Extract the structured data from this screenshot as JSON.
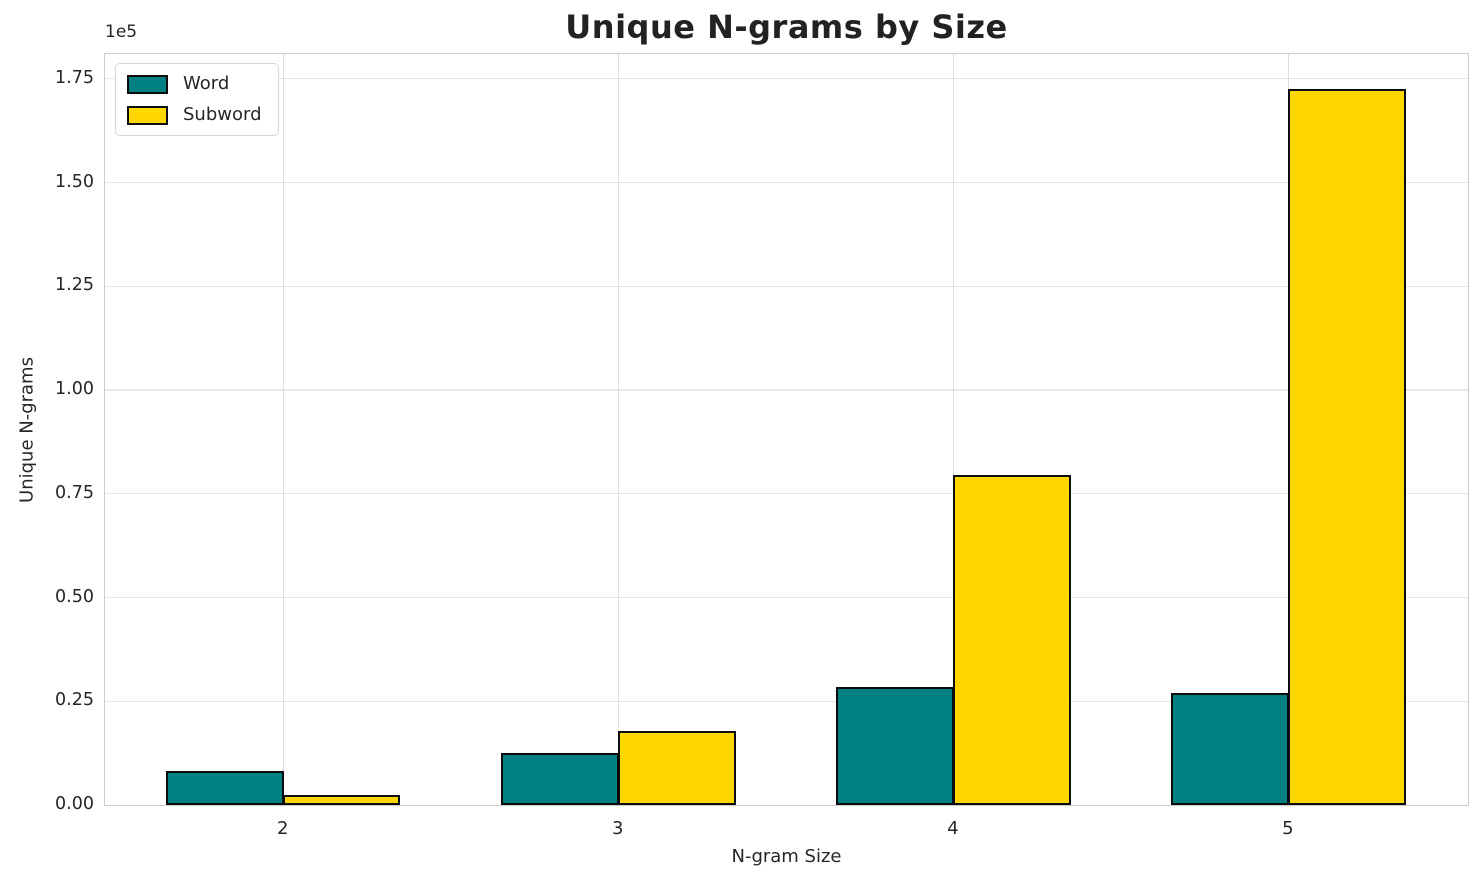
{
  "chart_data": {
    "type": "bar",
    "title": "Unique N-grams by Size",
    "xlabel": "N-gram Size",
    "ylabel": "Unique N-grams",
    "categories": [
      "2",
      "3",
      "4",
      "5"
    ],
    "series": [
      {
        "name": "Word",
        "color": "#008080",
        "values": [
          8200,
          12600,
          28400,
          27100
        ]
      },
      {
        "name": "Subword",
        "color": "#FFD700",
        "values": [
          2300,
          17900,
          79500,
          172500
        ]
      }
    ],
    "bar_edge_color": "#0c0c0c",
    "y_tick_labels": [
      "0.00",
      "0.25",
      "0.50",
      "0.75",
      "1.00",
      "1.25",
      "1.50",
      "1.75"
    ],
    "y_tick_step": 25000,
    "y_offset_label": "1e5",
    "ylim": [
      0,
      181000
    ],
    "grid": true,
    "legend": {
      "position": "upper left"
    }
  }
}
